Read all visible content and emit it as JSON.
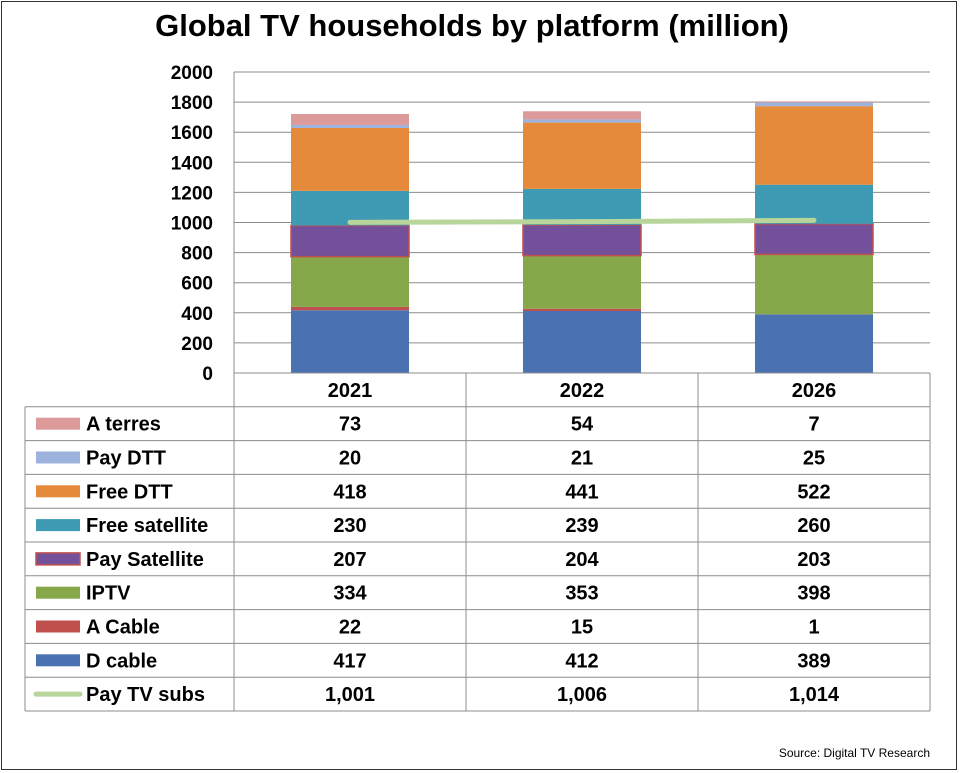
{
  "chart_data": {
    "type": "bar",
    "stacked": true,
    "title": "Global TV households by platform (million)",
    "categories": [
      "2021",
      "2022",
      "2026"
    ],
    "ylim": [
      0,
      2000
    ],
    "yticks": [
      "0",
      "200",
      "400",
      "600",
      "800",
      "1000",
      "1200",
      "1400",
      "1600",
      "1800",
      "2000"
    ],
    "series": [
      {
        "name": "D cable",
        "values": [
          417,
          412,
          389
        ],
        "display": [
          "417",
          "412",
          "389"
        ],
        "color": "#4a72b0"
      },
      {
        "name": "A Cable",
        "values": [
          22,
          15,
          1
        ],
        "display": [
          "22",
          "15",
          "1"
        ],
        "color": "#c0504d"
      },
      {
        "name": "IPTV",
        "values": [
          334,
          353,
          398
        ],
        "display": [
          "334",
          "353",
          "398"
        ],
        "color": "#86a84a"
      },
      {
        "name": "Pay Satellite",
        "values": [
          207,
          204,
          203
        ],
        "display": [
          "207",
          "204",
          "203"
        ],
        "color": "#74509a",
        "outline": "#c0504d"
      },
      {
        "name": "Free satellite",
        "values": [
          230,
          239,
          260
        ],
        "display": [
          "230",
          "239",
          "260"
        ],
        "color": "#3f9ab4"
      },
      {
        "name": "Free DTT",
        "values": [
          418,
          441,
          522
        ],
        "display": [
          "418",
          "441",
          "522"
        ],
        "color": "#e58a3a"
      },
      {
        "name": "Pay DTT",
        "values": [
          20,
          21,
          25
        ],
        "display": [
          "20",
          "21",
          "25"
        ],
        "color": "#9db3dd"
      },
      {
        "name": "A terres",
        "values": [
          73,
          54,
          7
        ],
        "display": [
          "73",
          "54",
          "7"
        ],
        "color": "#dd9a9a"
      }
    ],
    "line_series": {
      "name": "Pay TV subs",
      "values": [
        1001,
        1006,
        1014
      ],
      "display": [
        "1,001",
        "1,006",
        "1,014"
      ],
      "color": "#b8d59c"
    },
    "table_row_order": [
      "A terres",
      "Pay DTT",
      "Free DTT",
      "Free satellite",
      "Pay Satellite",
      "IPTV",
      "A Cable",
      "D cable",
      "Pay TV subs"
    ],
    "grid": true,
    "legend": "data table below chart"
  },
  "source": "Source: Digital TV Research"
}
